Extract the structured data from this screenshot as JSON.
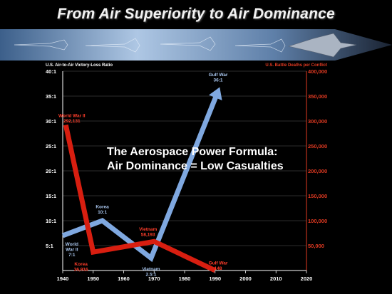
{
  "title": "From Air Superiority to Air Dominance",
  "formula": {
    "line1": "The Aerospace Power Formula:",
    "line2": "Air Dominance  =  Low Casualties"
  },
  "colors": {
    "ratio_series": "#7fa8e0",
    "deaths_series": "#d81e10",
    "left_axis": "#ffffff",
    "right_axis": "#e23a22",
    "grid": "#3a3a3a",
    "background": "#000000"
  },
  "chart_data": {
    "type": "line",
    "xlabel": "",
    "x_ticks": [
      "1940",
      "1950",
      "1960",
      "1970",
      "1980",
      "1990",
      "2000",
      "2010",
      "2020"
    ],
    "xlim": [
      1940,
      2020
    ],
    "y_left": {
      "label": "U.S. Air-to-Air Victory-Loss Ratio",
      "ticks": [
        "5:1",
        "10:1",
        "15:1",
        "20:1",
        "25:1",
        "30:1",
        "35:1",
        "40:1"
      ],
      "ylim": [
        0,
        40
      ]
    },
    "y_right": {
      "label": "U.S. Battle Deaths per Conflict",
      "ticks": [
        "50,000",
        "100,000",
        "150,000",
        "200,000",
        "250,000",
        "300,000",
        "350,000",
        "400,000"
      ],
      "ylim": [
        0,
        400000
      ]
    },
    "series": [
      {
        "axis": "left",
        "points": [
          {
            "x": 1940,
            "y": 7
          },
          {
            "x": 1953,
            "y": 10
          },
          {
            "x": 1969,
            "y": 2.5
          },
          {
            "x": 1991,
            "y": 36
          }
        ],
        "labels": [
          {
            "x": 1943,
            "y": 5,
            "lines": [
              "World",
              "War II",
              "7:1"
            ]
          },
          {
            "x": 1953,
            "y": 12.5,
            "lines": [
              "Korea",
              "10:1"
            ]
          },
          {
            "x": 1969,
            "y": 0,
            "lines": [
              "Vietnam",
              "2.5:1"
            ]
          },
          {
            "x": 1991,
            "y": 39,
            "lines": [
              "Gulf War",
              "36:1"
            ]
          }
        ]
      },
      {
        "axis": "right",
        "points": [
          {
            "x": 1941,
            "y": 292131
          },
          {
            "x": 1950,
            "y": 36916
          },
          {
            "x": 1970,
            "y": 58193
          },
          {
            "x": 1990,
            "y": 148
          }
        ],
        "labels": [
          {
            "x": 1943,
            "y": 308000,
            "lines": [
              "World War II",
              "292,131"
            ]
          },
          {
            "x": 1946,
            "y": 10000,
            "lines": [
              "Korea",
              "36,916"
            ]
          },
          {
            "x": 1968,
            "y": 80000,
            "lines": [
              "Vietnam",
              "58,193"
            ]
          },
          {
            "x": 1991,
            "y": 12000,
            "lines": [
              "Gulf War",
              "148"
            ]
          }
        ]
      }
    ]
  }
}
